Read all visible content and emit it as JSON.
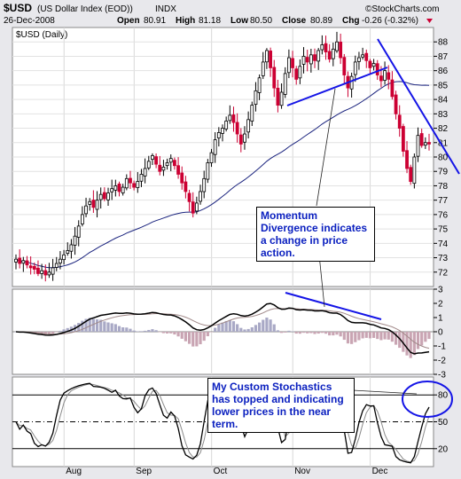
{
  "header": {
    "symbol": "$USD",
    "name": "(US Dollar Index (EOD))",
    "exchange": "INDX",
    "date": "26-Dec-2008",
    "open_label": "Open",
    "open": "80.91",
    "high_label": "High",
    "high": "81.18",
    "low_label": "Low",
    "low": "80.50",
    "close_label": "Close",
    "close": "80.89",
    "chg_label": "Chg",
    "chg": "-0.26 (-0.32%)",
    "copyright": "©StockCharts.com"
  },
  "colors": {
    "up": "#000000",
    "down": "#cc0033",
    "ma": "#1a237e",
    "annotation": "#1414e6",
    "background": "#e8e8ec",
    "plot_bg": "#ffffff",
    "histogram_pos": "#a9a9c6",
    "histogram_neg": "#c9a5b3",
    "annotation_text": "#0a1fbf"
  },
  "annotations": {
    "momentum_note": "Momentum Divergence indicates a change in price action.",
    "stoch_note": "My Custom Stochastics has topped and indicating lower prices in the near term."
  },
  "chart_data": [
    {
      "type": "candlestick",
      "panel_label": "$USD (Daily)",
      "x_ticks": [
        "Aug",
        "Sep",
        "Oct",
        "Nov",
        "Dec"
      ],
      "ylim": [
        71,
        89
      ],
      "y_ticks": [
        72,
        73,
        74,
        75,
        76,
        77,
        78,
        79,
        80,
        81,
        82,
        83,
        84,
        85,
        86,
        87,
        88
      ],
      "close": [
        72.9,
        72.6,
        72.8,
        72.5,
        72.3,
        72.2,
        71.9,
        72.1,
        71.8,
        72.0,
        72.3,
        72.6,
        72.9,
        73.2,
        73.5,
        73.9,
        74.5,
        75.2,
        76.0,
        76.6,
        76.9,
        76.5,
        77.0,
        77.4,
        77.1,
        77.5,
        77.8,
        78.0,
        77.6,
        77.9,
        78.5,
        78.2,
        77.9,
        78.3,
        78.8,
        79.2,
        79.7,
        80.1,
        79.5,
        79.0,
        79.3,
        79.6,
        79.9,
        79.4,
        78.8,
        78.2,
        77.6,
        76.9,
        76.1,
        76.8,
        77.6,
        78.5,
        79.6,
        80.3,
        81.2,
        81.7,
        82.0,
        82.5,
        82.9,
        82.4,
        81.6,
        80.9,
        81.6,
        82.6,
        83.6,
        84.6,
        85.5,
        86.6,
        87.4,
        86.2,
        84.8,
        83.6,
        84.5,
        85.8,
        86.9,
        86.2,
        85.4,
        86.3,
        87.0,
        86.6,
        87.1,
        86.7,
        87.4,
        87.8,
        87.3,
        86.8,
        87.5,
        88.0,
        86.9,
        85.7,
        84.8,
        85.6,
        86.6,
        86.9,
        87.1,
        86.7,
        86.2,
        86.5,
        85.7,
        85.3,
        86.0,
        85.4,
        84.2,
        83.0,
        82.0,
        80.4,
        79.2,
        78.3,
        80.0,
        81.5,
        80.8,
        81.0,
        80.9
      ]
    },
    {
      "type": "macd",
      "ylim": [
        -3,
        3
      ],
      "y_ticks": [
        -3,
        -2,
        -1,
        0,
        1,
        2,
        3
      ]
    },
    {
      "type": "stochastic",
      "ylim": [
        0,
        100
      ],
      "y_ticks": [
        20,
        50,
        80
      ],
      "levels": [
        20,
        50,
        80
      ]
    }
  ]
}
